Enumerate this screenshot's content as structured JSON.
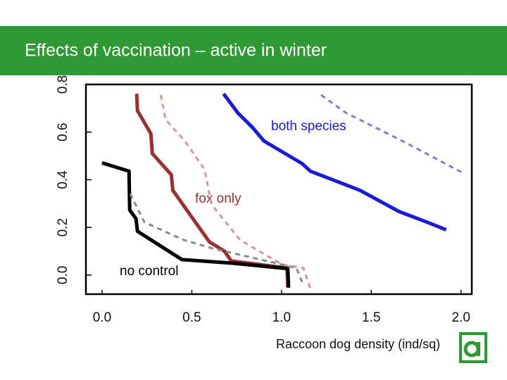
{
  "chart_data": {
    "type": "line",
    "title": "Effects of vaccination – active in winter",
    "x_label": "Raccoon dog density (ind/sq)",
    "xlim": [
      -0.09,
      2.06
    ],
    "ylim": [
      -0.08,
      0.8
    ],
    "xticks": [
      {
        "value": 0,
        "label": "0.0"
      },
      0.5,
      {
        "value": 1,
        "label": "1.0"
      },
      1.5,
      {
        "value": 2,
        "label": "2.0"
      }
    ],
    "yticks": [
      {
        "value": 0,
        "label": "0.0"
      },
      0.2,
      0.4,
      0.6,
      0.8
    ],
    "series": [
      {
        "name": "both species",
        "color": "#1a1adc",
        "style": "solid",
        "x": [
          0.677,
          0.756,
          0.835,
          0.902,
          1.114,
          1.161,
          1.437,
          1.654,
          1.811,
          1.917
        ],
        "values": [
          0.761,
          0.681,
          0.622,
          0.563,
          0.468,
          0.436,
          0.356,
          0.267,
          0.222,
          0.19
        ]
      },
      {
        "name": "fox only",
        "color": "#9b3030",
        "style": "solid",
        "x": [
          0.193,
          0.197,
          0.272,
          0.28,
          0.386,
          0.394,
          0.598,
          0.681,
          0.72,
          1.031,
          1.035
        ],
        "values": [
          0.761,
          0.69,
          0.593,
          0.51,
          0.421,
          0.356,
          0.139,
          0.101,
          0.059,
          0.03,
          -0.05
        ]
      },
      {
        "name": "no control",
        "color": "#000000",
        "style": "solid",
        "x": [
          0,
          0.15,
          0.154,
          0.189,
          0.197,
          0.445,
          0.728,
          1.035,
          1.039
        ],
        "values": [
          0.471,
          0.436,
          0.273,
          0.237,
          0.184,
          0.065,
          0.05,
          0.027,
          -0.053
        ]
      },
      {
        "color": "#8080d0",
        "style": "dashed",
        "x": [
          1.22,
          1.358,
          1.673,
          2.008
        ],
        "values": [
          0.756,
          0.681,
          0.563,
          0.43
        ]
      },
      {
        "color": "#d09a9a",
        "style": "dashed",
        "x": [
          0.327,
          0.354,
          0.461,
          0.571,
          0.61,
          0.768,
          1.004,
          1.122,
          1.161
        ],
        "values": [
          0.756,
          0.652,
          0.563,
          0.444,
          0.296,
          0.148,
          0.044,
          0.03,
          -0.059
        ]
      },
      {
        "color": "#8a8a8a",
        "style": "dashed",
        "x": [
          0.157,
          0.236,
          0.453,
          0.61,
          1.083,
          1.122
        ],
        "values": [
          0.341,
          0.222,
          0.148,
          0.113,
          0.03,
          -0.044
        ]
      }
    ]
  }
}
